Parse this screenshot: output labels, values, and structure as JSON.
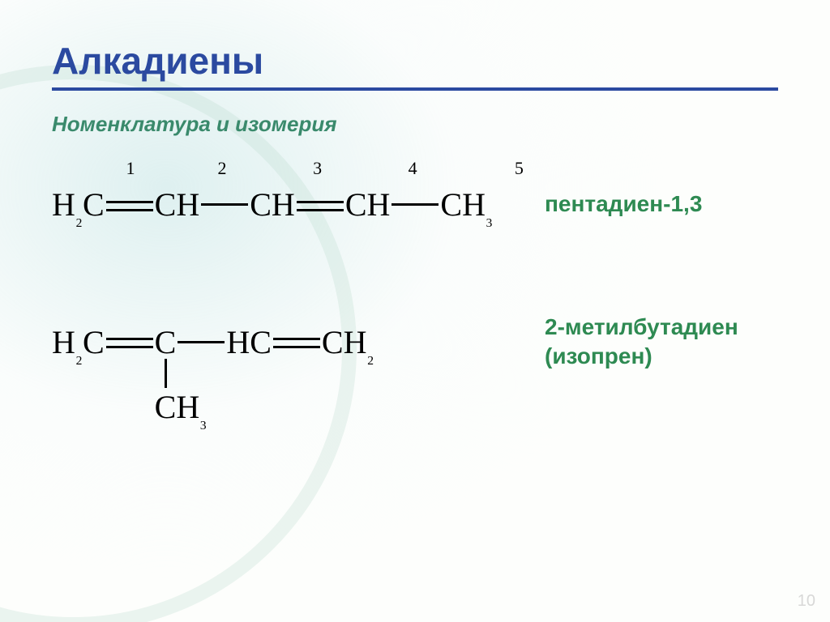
{
  "colors": {
    "title": "#2b4aa0",
    "divider": "#2b4aa0",
    "subtitle": "#3a8a6c",
    "label": "#2e8a52",
    "formula": "#000000"
  },
  "page": {
    "title": "Алкадиены",
    "subtitle": "Номенклатура и изомерия",
    "pageNumber": "10"
  },
  "compounds": [
    {
      "label": "пентадиен-1,3",
      "labelLine2": "",
      "chain": [
        {
          "atom": "H₂C",
          "index": "1",
          "bondAfter": "double"
        },
        {
          "atom": "CH",
          "index": "2",
          "bondAfter": "single"
        },
        {
          "atom": "CH",
          "index": "3",
          "bondAfter": "double"
        },
        {
          "atom": "CH",
          "index": "4",
          "bondAfter": "single"
        },
        {
          "atom": "CH₃",
          "index": "5",
          "bondAfter": "none"
        }
      ],
      "branch": null
    },
    {
      "label": "2-метилбутадиен",
      "labelLine2": "(изопрен)",
      "chain": [
        {
          "atom": "H₂C",
          "index": "",
          "bondAfter": "double"
        },
        {
          "atom": "C",
          "index": "",
          "bondAfter": "single"
        },
        {
          "atom": "HC",
          "index": "",
          "bondAfter": "double"
        },
        {
          "atom": "CH₂",
          "index": "",
          "bondAfter": "none"
        }
      ],
      "branch": {
        "onAtom": 1,
        "atom": "CH₃"
      }
    }
  ],
  "style": {
    "titleFontSize": 46,
    "subtitleFontSize": 26,
    "labelFontSize": 28,
    "formulaFontSize": 40,
    "indexFontSize": 22,
    "bondLength": 58,
    "bondThickness": 3
  }
}
